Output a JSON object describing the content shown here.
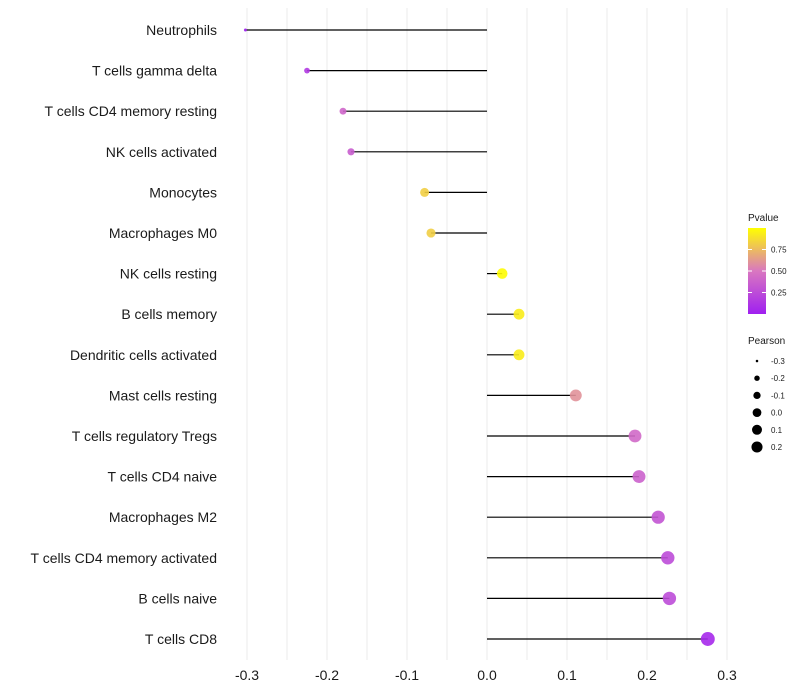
{
  "chart_data": {
    "type": "lollipop",
    "title": "",
    "xlabel": "",
    "ylabel": "",
    "xlim": [
      -0.32,
      0.32
    ],
    "x_ticks": [
      -0.3,
      -0.2,
      -0.1,
      0.0,
      0.1,
      0.2,
      0.3
    ],
    "x_tick_labels": [
      "-0.3",
      "-0.2",
      "-0.1",
      "0.0",
      "0.1",
      "0.2",
      "0.3"
    ],
    "grid": true,
    "categories": [
      "Neutrophils",
      "T cells gamma delta",
      "T cells CD4 memory resting",
      "NK cells activated",
      "Monocytes",
      "Macrophages M0",
      "NK cells resting",
      "B cells memory",
      "Dendritic cells activated",
      "Mast cells resting",
      "T cells regulatory  Tregs ",
      "T cells CD4 naive",
      "Macrophages M2",
      "T cells CD4 memory activated",
      "B cells naive",
      "T cells CD8"
    ],
    "values": [
      -0.302,
      -0.225,
      -0.18,
      -0.17,
      -0.078,
      -0.07,
      0.019,
      0.04,
      0.04,
      0.111,
      0.185,
      0.19,
      0.214,
      0.226,
      0.228,
      0.276
    ],
    "pvalues": [
      0.001,
      0.15,
      0.4,
      0.35,
      0.82,
      0.82,
      0.99,
      0.93,
      0.93,
      0.6,
      0.42,
      0.38,
      0.3,
      0.25,
      0.25,
      0.05
    ],
    "legend": {
      "color": {
        "title": "Pvalue",
        "ticks": [
          0.25,
          0.5,
          0.75
        ],
        "tick_labels": [
          "0.25",
          "0.50",
          "0.75"
        ],
        "range": [
          0.0,
          1.0
        ],
        "low_color": "#a020f0",
        "mid_color": "#d977c0",
        "high_color": "#ffff00"
      },
      "size": {
        "title": "Pearson",
        "values": [
          -0.3,
          -0.2,
          -0.1,
          0.0,
          0.1,
          0.2
        ],
        "labels": [
          "-0.3",
          "-0.2",
          "-0.1",
          "0.0",
          "0.1",
          "0.2"
        ]
      },
      "position": "right"
    }
  }
}
